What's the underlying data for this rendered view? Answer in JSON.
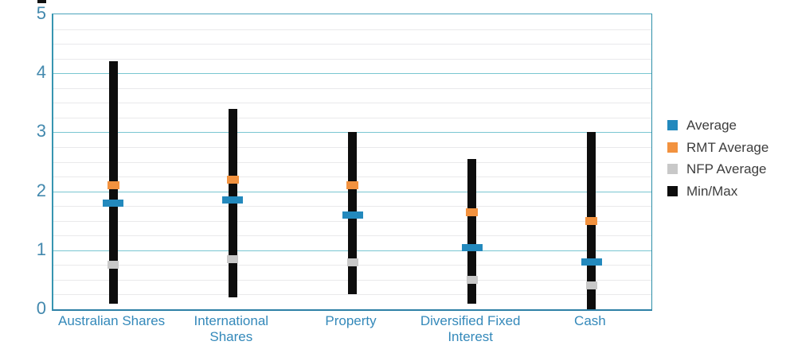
{
  "chart_data": {
    "type": "range-bar",
    "title": "",
    "xlabel": "",
    "ylabel": "",
    "categories": [
      "Australian Shares",
      "International Shares",
      "Property",
      "Diversified Fixed Interest",
      "Cash"
    ],
    "category_label_lines": [
      [
        "Australian Shares"
      ],
      [
        "International",
        "Shares"
      ],
      [
        "Property"
      ],
      [
        "Diversified Fixed",
        "Interest"
      ],
      [
        "Cash"
      ]
    ],
    "y_axis": {
      "min": 0,
      "max": 5,
      "major_step": 1,
      "minor_step": 0.25,
      "tick_labels": [
        "0",
        "1",
        "2",
        "3",
        "4",
        "5"
      ],
      "tick_values": [
        0,
        1,
        2,
        3,
        4,
        5
      ]
    },
    "grid": true,
    "legend_position": "right",
    "series": [
      {
        "name": "Average",
        "type": "marker",
        "color": "#2389bd",
        "values": [
          1.8,
          1.85,
          1.6,
          1.05,
          0.8
        ]
      },
      {
        "name": "RMT Average",
        "type": "marker",
        "color": "#f2923f",
        "values": [
          2.1,
          2.2,
          2.1,
          1.65,
          1.5
        ]
      },
      {
        "name": "NFP Average",
        "type": "marker",
        "color": "#c8c8c8",
        "values": [
          0.75,
          0.85,
          0.8,
          0.5,
          0.4
        ]
      },
      {
        "name": "Min/Max",
        "type": "range",
        "color": "#0d0d0d",
        "min": [
          0.1,
          0.2,
          0.25,
          0.1,
          0.0
        ],
        "max": [
          4.2,
          3.4,
          3.0,
          2.55,
          3.0
        ]
      }
    ],
    "legend": [
      {
        "label": "Average",
        "color": "#2389bd"
      },
      {
        "label": "RMT Average",
        "color": "#f2923f"
      },
      {
        "label": "NFP Average",
        "color": "#c8c8c8"
      },
      {
        "label": "Min/Max",
        "color": "#0d0d0d"
      }
    ]
  },
  "colors": {
    "average": "#2389bd",
    "rmt_average": "#f2923f",
    "nfp_average": "#c8c8c8",
    "minmax": "#0d0d0d",
    "major_gridline": "#79c6d1",
    "minor_gridline": "#e9e9eb",
    "axis_tick_text": "#4389ae",
    "category_text": "#3489ba",
    "legend_text": "#3d3d3d"
  }
}
